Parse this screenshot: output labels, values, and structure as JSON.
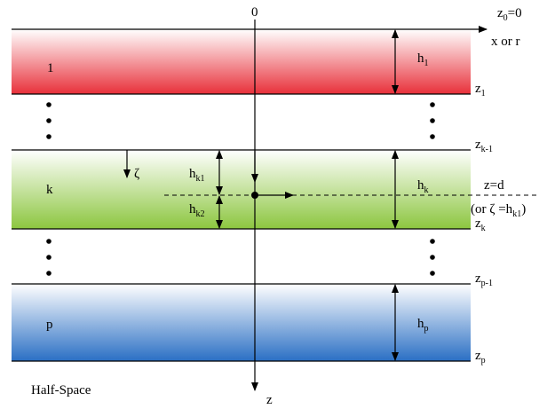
{
  "labels": {
    "origin": "0",
    "z0": {
      "base": "z",
      "sub": "0",
      "tail": "=0"
    },
    "x_axis": "x or r",
    "z_axis": "z",
    "half_space": "Half-Space",
    "layer1": "1",
    "layerk": "k",
    "layerp": "p",
    "h1": {
      "base": "h",
      "sub": "1"
    },
    "z1": {
      "base": "z",
      "sub": "1"
    },
    "zk1": {
      "base": "z",
      "sub": "k-1"
    },
    "hk": {
      "base": "h",
      "sub": "k"
    },
    "hk1": {
      "base": "h",
      "sub": "k1"
    },
    "hk2": {
      "base": "h",
      "sub": "k2"
    },
    "zk": {
      "base": "z",
      "sub": "k"
    },
    "zeta": "ζ",
    "zd": "z=d",
    "or_zeta": {
      "pre": "(or ",
      "zeta": "ζ",
      "mid": " =h",
      "sub": "k1",
      "tail": ")"
    },
    "zp1": {
      "base": "z",
      "sub": "p-1"
    },
    "hp": {
      "base": "h",
      "sub": "p"
    },
    "zp": {
      "base": "z",
      "sub": "p"
    }
  },
  "colors": {
    "layer1": "#e8303a",
    "layerk": "#8cc63f",
    "layerp": "#2a6fc4"
  }
}
